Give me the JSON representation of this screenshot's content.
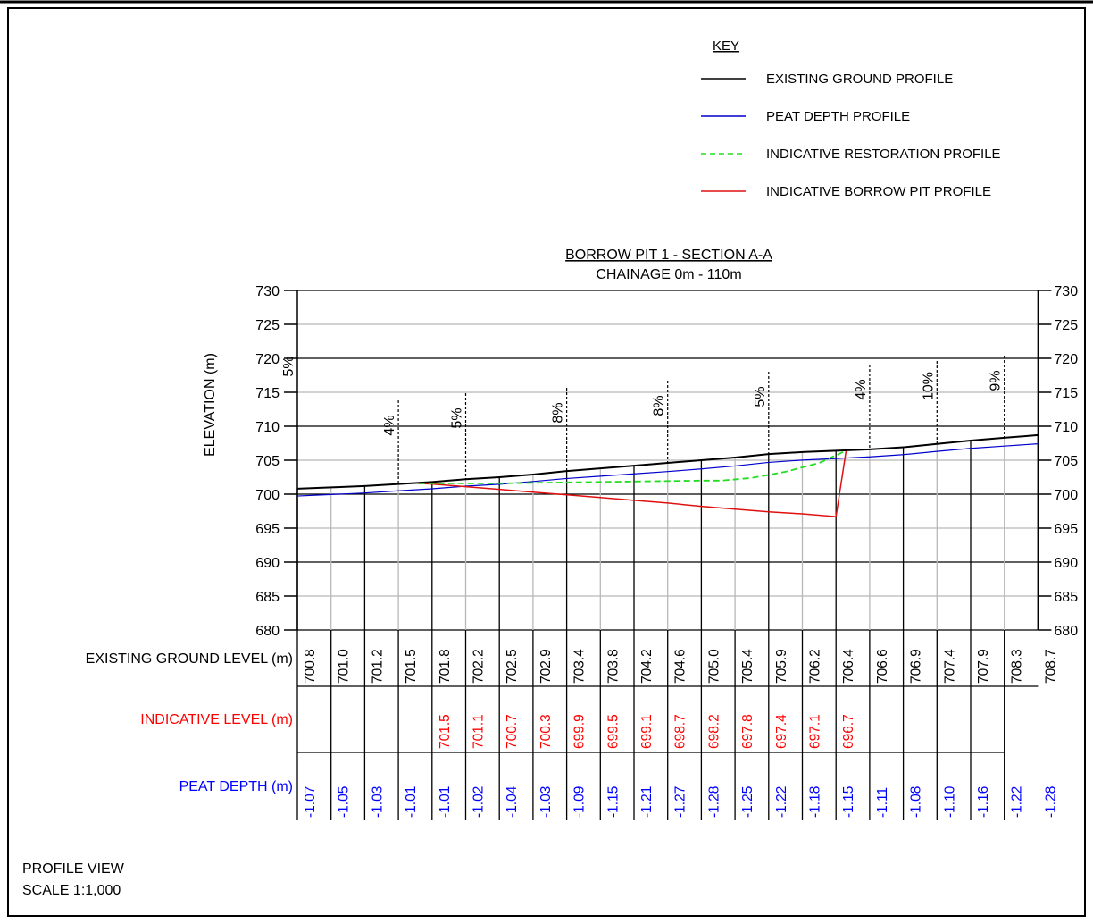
{
  "key": {
    "title": "KEY",
    "items": [
      {
        "label": "EXISTING GROUND PROFILE",
        "color": "#000000",
        "dash": false
      },
      {
        "label": "PEAT DEPTH PROFILE",
        "color": "#0000cc",
        "dash": false
      },
      {
        "label": "INDICATIVE RESTORATION PROFILE",
        "color": "#22dd22",
        "dash": true
      },
      {
        "label": "INDICATIVE BORROW PIT PROFILE",
        "color": "#e01010",
        "dash": false
      }
    ]
  },
  "section": {
    "title": "BORROW PIT 1 - SECTION A-A",
    "subtitle": "CHAINAGE 0m - 110m"
  },
  "axis": {
    "ylabel": "ELEVATION (m)",
    "ylim": [
      680,
      730
    ],
    "ticks": [
      730,
      725,
      720,
      715,
      710,
      705,
      700,
      695,
      690,
      685,
      680
    ]
  },
  "slopes": [
    "5%",
    "4%",
    "5%",
    "8%",
    "8%",
    "5%",
    "4%",
    "10%",
    "9%"
  ],
  "rows": {
    "existing_label": "EXISTING GROUND LEVEL (m)",
    "indicative_label": "INDICATIVE LEVEL (m)",
    "peat_label": "PEAT DEPTH (m)"
  },
  "chart_data": {
    "type": "line",
    "x_stations": 22,
    "existing_ground_level": [
      "700.8",
      "701.0",
      "701.2",
      "701.5",
      "701.8",
      "702.2",
      "702.5",
      "702.9",
      "703.4",
      "703.8",
      "704.2",
      "704.6",
      "705.0",
      "705.4",
      "705.9",
      "706.2",
      "706.4",
      "706.6",
      "706.9",
      "707.4",
      "707.9",
      "708.3",
      "708.7"
    ],
    "indicative_level": [
      "",
      "",
      "",
      "",
      "701.5",
      "701.1",
      "700.7",
      "700.3",
      "699.9",
      "699.5",
      "699.1",
      "698.7",
      "698.2",
      "697.8",
      "697.4",
      "697.1",
      "696.7",
      "",
      "",
      "",
      "",
      "",
      ""
    ],
    "peat_depth": [
      "-1.07",
      "-1.05",
      "-1.03",
      "-1.01",
      "-1.01",
      "-1.02",
      "-1.04",
      "-1.03",
      "-1.09",
      "-1.15",
      "-1.21",
      "-1.27",
      "-1.28",
      "-1.25",
      "-1.22",
      "-1.18",
      "-1.15",
      "-1.11",
      "-1.08",
      "-1.10",
      "-1.16",
      "-1.22",
      "-1.28"
    ],
    "restoration_profile": [
      [
        3.6,
        701.6
      ],
      [
        6,
        701.6
      ],
      [
        9,
        701.8
      ],
      [
        12,
        702.0
      ],
      [
        12.6,
        702.0
      ],
      [
        13.5,
        702.4
      ],
      [
        14.5,
        703.3
      ],
      [
        15.5,
        704.6
      ],
      [
        16.3,
        706.4
      ]
    ],
    "borrow_pit_profile": [
      [
        3.6,
        701.6
      ],
      [
        4,
        701.5
      ],
      [
        5,
        701.1
      ],
      [
        6,
        700.7
      ],
      [
        7,
        700.3
      ],
      [
        8,
        699.9
      ],
      [
        9,
        699.5
      ],
      [
        10,
        699.1
      ],
      [
        11,
        698.7
      ],
      [
        12,
        698.2
      ],
      [
        13,
        697.8
      ],
      [
        14,
        697.4
      ],
      [
        15,
        697.1
      ],
      [
        16,
        696.7
      ],
      [
        16.3,
        706.4
      ]
    ],
    "colors": {
      "existing": "#000000",
      "peat": "#0000cc",
      "restoration": "#22dd22",
      "borrow": "#e01010",
      "indicative_text": "#ff0000",
      "peat_text": "#0000ff"
    }
  },
  "footer": {
    "view": "PROFILE VIEW",
    "scale": "SCALE 1:1,000"
  }
}
